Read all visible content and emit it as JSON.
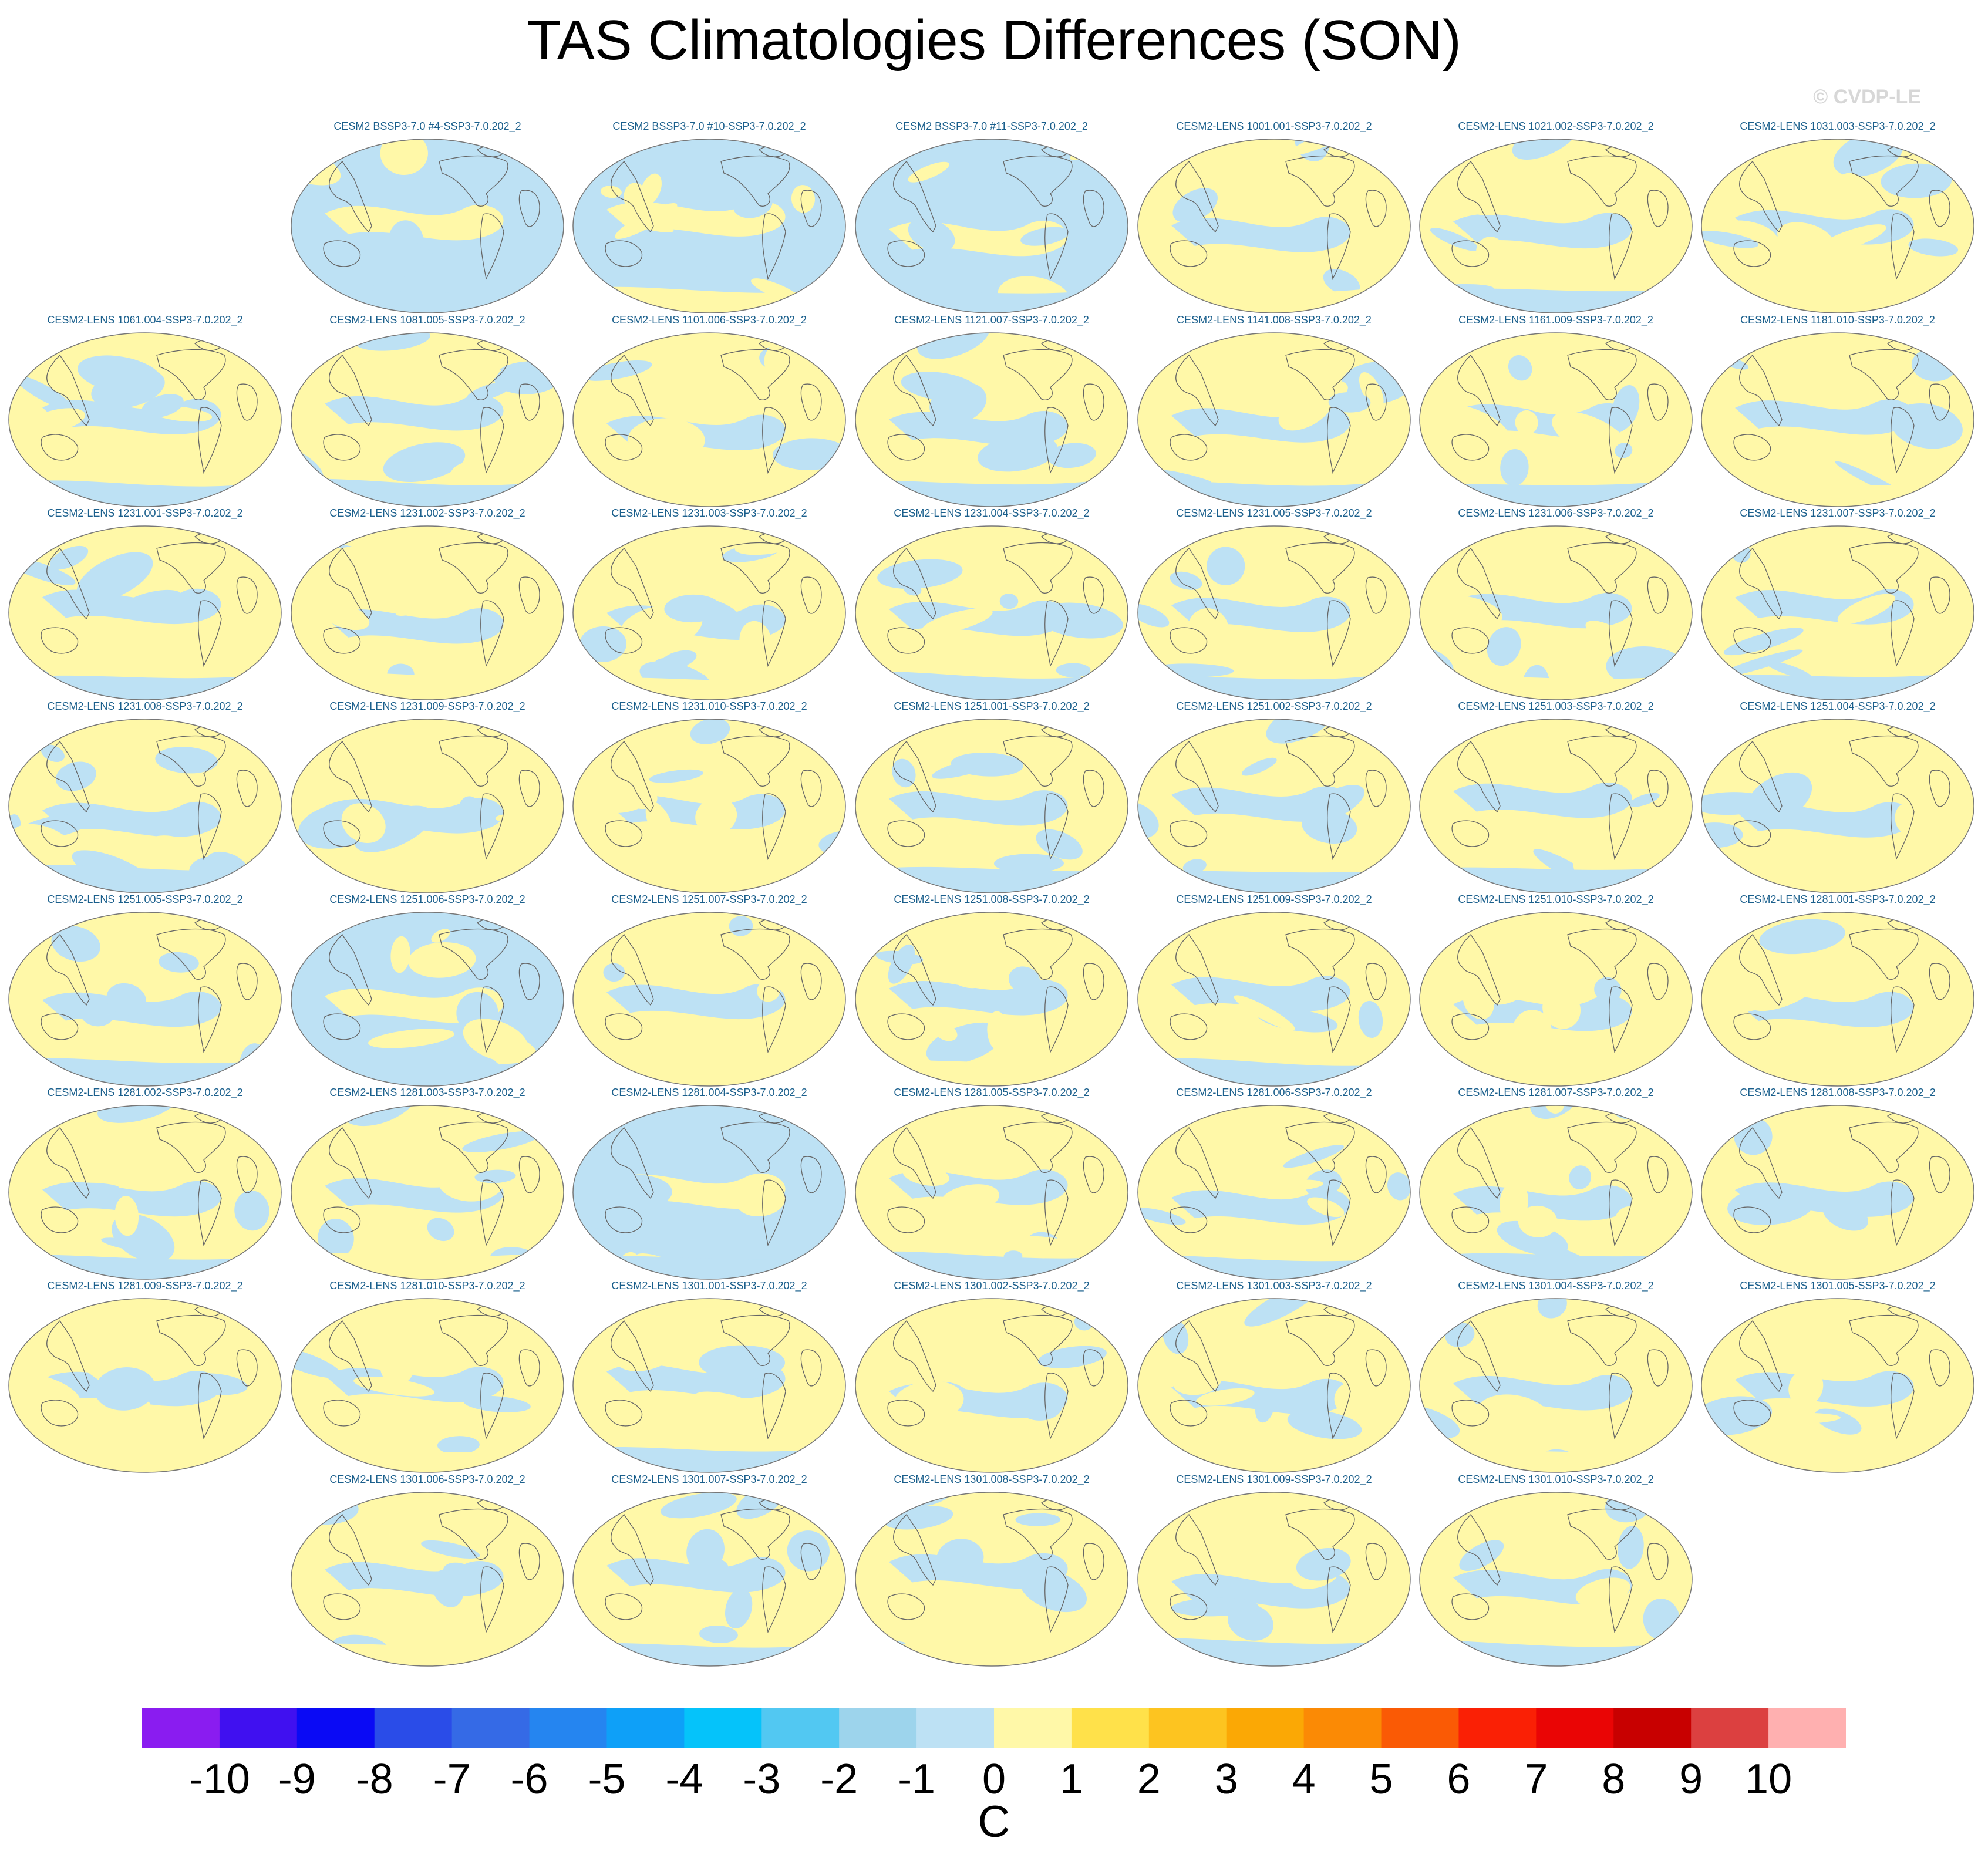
{
  "title": "TAS Climatologies Differences (SON)",
  "copyright": "© CVDP-LE",
  "chart_data": {
    "type": "heatmap",
    "variable": "TAS",
    "season": "SON",
    "projection": "Robinson (global, Pacific-centered)",
    "units": "C",
    "colorbar": {
      "ticks": [
        "-10",
        "-9",
        "-8",
        "-7",
        "-6",
        "-5",
        "-4",
        "-3",
        "-2",
        "-1",
        "0",
        "1",
        "2",
        "3",
        "4",
        "5",
        "6",
        "7",
        "8",
        "9",
        "10"
      ],
      "colors": [
        "#8a1cf0",
        "#4010f0",
        "#0a0af5",
        "#2a4ce8",
        "#356ae6",
        "#2585f0",
        "#0ea0f8",
        "#05c3fa",
        "#52c8f2",
        "#9dd4ec",
        "#bde1f4",
        "#fff8a8",
        "#ffe14a",
        "#fdc420",
        "#fba805",
        "#fb8a05",
        "#fa5a05",
        "#fa2005",
        "#ea0505",
        "#c80000",
        "#dc4040",
        "#ffb0b0"
      ],
      "color_meaning": "blue = colder than reference, yellow = warmer than reference; most panels show values between -1 and 1 C"
    },
    "panels": [
      {
        "title": "CESM2 BSSP3-7.0 #4-SSP3-7.0.202_2"
      },
      {
        "title": "CESM2 BSSP3-7.0 #10-SSP3-7.0.202_2"
      },
      {
        "title": "CESM2 BSSP3-7.0 #11-SSP3-7.0.202_2"
      },
      {
        "title": "CESM2-LENS 1001.001-SSP3-7.0.202_2"
      },
      {
        "title": "CESM2-LENS 1021.002-SSP3-7.0.202_2"
      },
      {
        "title": "CESM2-LENS 1031.003-SSP3-7.0.202_2"
      },
      {
        "title": "CESM2-LENS 1061.004-SSP3-7.0.202_2"
      },
      {
        "title": "CESM2-LENS 1081.005-SSP3-7.0.202_2"
      },
      {
        "title": "CESM2-LENS 1101.006-SSP3-7.0.202_2"
      },
      {
        "title": "CESM2-LENS 1121.007-SSP3-7.0.202_2"
      },
      {
        "title": "CESM2-LENS 1141.008-SSP3-7.0.202_2"
      },
      {
        "title": "CESM2-LENS 1161.009-SSP3-7.0.202_2"
      },
      {
        "title": "CESM2-LENS 1181.010-SSP3-7.0.202_2"
      },
      {
        "title": "CESM2-LENS 1231.001-SSP3-7.0.202_2"
      },
      {
        "title": "CESM2-LENS 1231.002-SSP3-7.0.202_2"
      },
      {
        "title": "CESM2-LENS 1231.003-SSP3-7.0.202_2"
      },
      {
        "title": "CESM2-LENS 1231.004-SSP3-7.0.202_2"
      },
      {
        "title": "CESM2-LENS 1231.005-SSP3-7.0.202_2"
      },
      {
        "title": "CESM2-LENS 1231.006-SSP3-7.0.202_2"
      },
      {
        "title": "CESM2-LENS 1231.007-SSP3-7.0.202_2"
      },
      {
        "title": "CESM2-LENS 1231.008-SSP3-7.0.202_2"
      },
      {
        "title": "CESM2-LENS 1231.009-SSP3-7.0.202_2"
      },
      {
        "title": "CESM2-LENS 1231.010-SSP3-7.0.202_2"
      },
      {
        "title": "CESM2-LENS 1251.001-SSP3-7.0.202_2"
      },
      {
        "title": "CESM2-LENS 1251.002-SSP3-7.0.202_2"
      },
      {
        "title": "CESM2-LENS 1251.003-SSP3-7.0.202_2"
      },
      {
        "title": "CESM2-LENS 1251.004-SSP3-7.0.202_2"
      },
      {
        "title": "CESM2-LENS 1251.005-SSP3-7.0.202_2"
      },
      {
        "title": "CESM2-LENS 1251.006-SSP3-7.0.202_2"
      },
      {
        "title": "CESM2-LENS 1251.007-SSP3-7.0.202_2"
      },
      {
        "title": "CESM2-LENS 1251.008-SSP3-7.0.202_2"
      },
      {
        "title": "CESM2-LENS 1251.009-SSP3-7.0.202_2"
      },
      {
        "title": "CESM2-LENS 1251.010-SSP3-7.0.202_2"
      },
      {
        "title": "CESM2-LENS 1281.001-SSP3-7.0.202_2"
      },
      {
        "title": "CESM2-LENS 1281.002-SSP3-7.0.202_2"
      },
      {
        "title": "CESM2-LENS 1281.003-SSP3-7.0.202_2"
      },
      {
        "title": "CESM2-LENS 1281.004-SSP3-7.0.202_2"
      },
      {
        "title": "CESM2-LENS 1281.005-SSP3-7.0.202_2"
      },
      {
        "title": "CESM2-LENS 1281.006-SSP3-7.0.202_2"
      },
      {
        "title": "CESM2-LENS 1281.007-SSP3-7.0.202_2"
      },
      {
        "title": "CESM2-LENS 1281.008-SSP3-7.0.202_2"
      },
      {
        "title": "CESM2-LENS 1281.009-SSP3-7.0.202_2"
      },
      {
        "title": "CESM2-LENS 1281.010-SSP3-7.0.202_2"
      },
      {
        "title": "CESM2-LENS 1301.001-SSP3-7.0.202_2"
      },
      {
        "title": "CESM2-LENS 1301.002-SSP3-7.0.202_2"
      },
      {
        "title": "CESM2-LENS 1301.003-SSP3-7.0.202_2"
      },
      {
        "title": "CESM2-LENS 1301.004-SSP3-7.0.202_2"
      },
      {
        "title": "CESM2-LENS 1301.005-SSP3-7.0.202_2"
      },
      {
        "title": "CESM2-LENS 1301.006-SSP3-7.0.202_2"
      },
      {
        "title": "CESM2-LENS 1301.007-SSP3-7.0.202_2"
      },
      {
        "title": "CESM2-LENS 1301.008-SSP3-7.0.202_2"
      },
      {
        "title": "CESM2-LENS 1301.009-SSP3-7.0.202_2"
      },
      {
        "title": "CESM2-LENS 1301.010-SSP3-7.0.202_2"
      }
    ]
  }
}
